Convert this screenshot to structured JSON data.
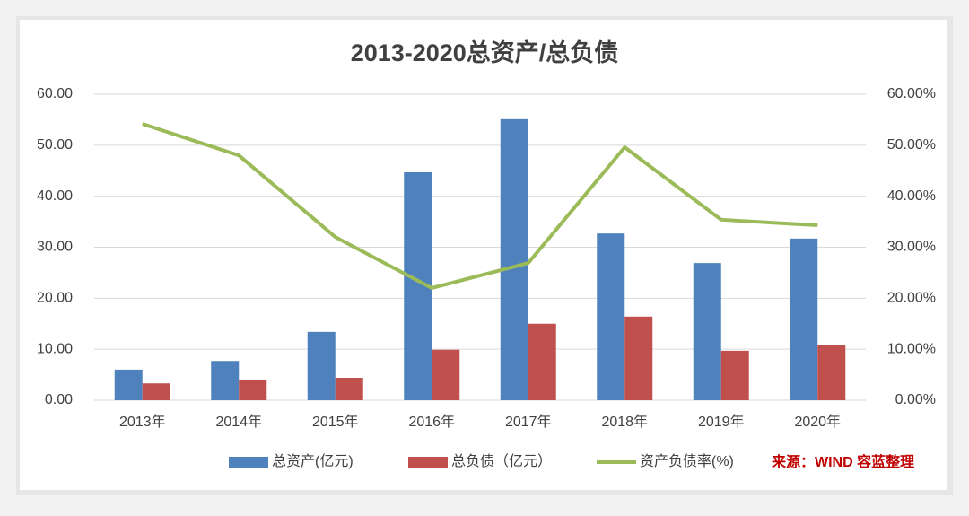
{
  "chart_data": {
    "type": "bar-line",
    "title": "2013-2020总资产/总负债",
    "categories": [
      "2013年",
      "2014年",
      "2015年",
      "2016年",
      "2017年",
      "2018年",
      "2019年",
      "2020年"
    ],
    "series": [
      {
        "name": "总资产(亿元)",
        "color": "#4f81bd",
        "type": "bar",
        "values": [
          6.0,
          7.7,
          13.4,
          44.7,
          55.1,
          32.7,
          26.9,
          31.7
        ]
      },
      {
        "name": "总负债（亿元）",
        "color": "#c0504d",
        "type": "bar",
        "values": [
          3.3,
          3.9,
          4.4,
          9.9,
          15.0,
          16.4,
          9.7,
          10.9
        ]
      },
      {
        "name": "资产负债率(%)",
        "color": "#9bbb59",
        "type": "line",
        "axis": "y2",
        "values": [
          54.2,
          48.0,
          32.0,
          22.0,
          26.9,
          49.6,
          35.4,
          34.3
        ]
      }
    ],
    "ylim": [
      0,
      60
    ],
    "yticks": [
      {
        "value": 0,
        "label": "0.00"
      },
      {
        "value": 10,
        "label": "10.00"
      },
      {
        "value": 20,
        "label": "20.00"
      },
      {
        "value": 30,
        "label": "30.00"
      },
      {
        "value": 40,
        "label": "40.00"
      },
      {
        "value": 50,
        "label": "50.00"
      },
      {
        "value": 60,
        "label": "60.00"
      }
    ],
    "y2lim": [
      0,
      60
    ],
    "y2ticks": [
      {
        "value": 0,
        "label": "0.00%"
      },
      {
        "value": 10,
        "label": "10.00%"
      },
      {
        "value": 20,
        "label": "20.00%"
      },
      {
        "value": 30,
        "label": "30.00%"
      },
      {
        "value": 40,
        "label": "40.00%"
      },
      {
        "value": 50,
        "label": "50.00%"
      },
      {
        "value": 60,
        "label": "60.00%"
      }
    ],
    "grid": true,
    "legend": "bottom",
    "annotation": "来源：WIND 容蓝整理"
  }
}
